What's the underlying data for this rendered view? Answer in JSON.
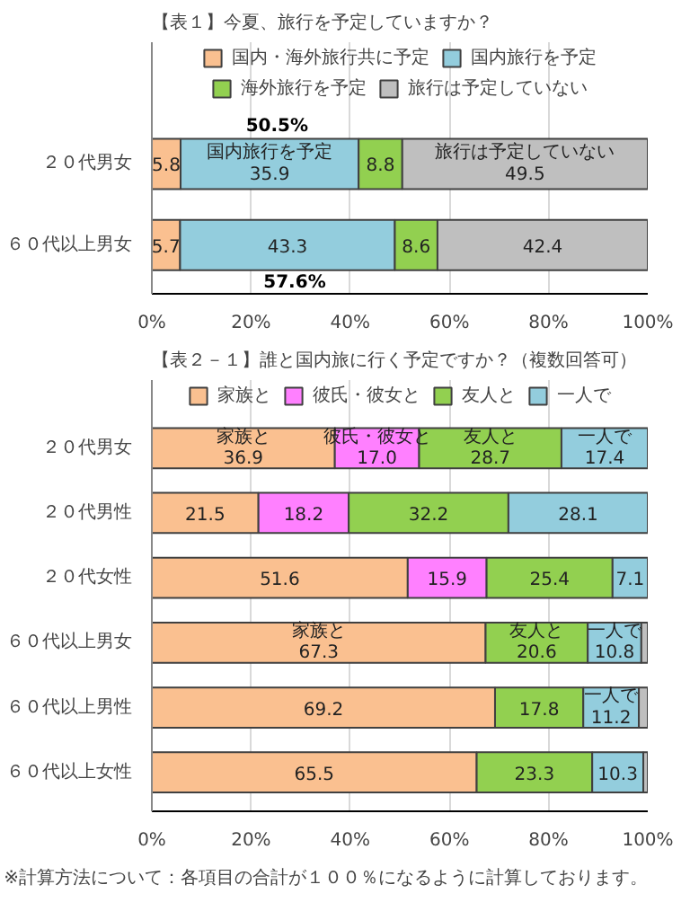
{
  "chart_data": [
    {
      "type": "bar",
      "orientation": "horizontal",
      "stacked": true,
      "title": "【表１】今夏、旅行を予定していますか？",
      "categories": [
        "２０代男女",
        "６０代以上男女"
      ],
      "series": [
        {
          "name": "国内・海外旅行共に予定",
          "color": "#fac090",
          "values": [
            5.8,
            5.7
          ],
          "value_labels": [
            "5.8",
            "5.7"
          ]
        },
        {
          "name": "国内旅行を予定",
          "color": "#93cddd",
          "values": [
            35.9,
            43.3
          ],
          "value_labels": [
            "国内旅行を予定\n35.9",
            "43.3"
          ]
        },
        {
          "name": "海外旅行を予定",
          "color": "#92d050",
          "values": [
            8.8,
            8.6
          ],
          "value_labels": [
            "8.8",
            "8.6"
          ]
        },
        {
          "name": "旅行は予定していない",
          "color": "#bfbfbf",
          "values": [
            49.5,
            42.4
          ],
          "value_labels": [
            "旅行は予定していない\n49.5",
            "42.4"
          ]
        }
      ],
      "annotations": [
        "50.5%",
        "57.6%"
      ],
      "xlim": [
        0,
        100
      ],
      "xticks": [
        {
          "value": 0,
          "label": "0%"
        },
        {
          "value": 20,
          "label": "20%"
        },
        {
          "value": 40,
          "label": "40%"
        },
        {
          "value": 60,
          "label": "60%"
        },
        {
          "value": 80,
          "label": "80%"
        },
        {
          "value": 100,
          "label": "100%"
        }
      ],
      "grid": "x",
      "legend": "top"
    },
    {
      "type": "bar",
      "orientation": "horizontal",
      "stacked": true,
      "title": "【表２－１】誰と国内旅に行く予定ですか？（複数回答可）",
      "categories": [
        "２０代男女",
        "２０代男性",
        "２０代女性",
        "６０代以上男女",
        "６０代以上男性",
        "６０代以上女性"
      ],
      "series": [
        {
          "name": "家族と",
          "color": "#fac090",
          "values": [
            36.9,
            21.5,
            51.6,
            67.3,
            69.2,
            65.5
          ],
          "value_labels": [
            "家族と\n36.9",
            "21.5",
            "51.6",
            "家族と\n67.3",
            "69.2",
            "65.5"
          ]
        },
        {
          "name": "彼氏・彼女と",
          "color": "#ff80ff",
          "values": [
            17.0,
            18.2,
            15.9,
            null,
            null,
            null
          ],
          "value_labels": [
            "彼氏・彼女と\n17.0",
            "18.2",
            "15.9",
            null,
            null,
            null
          ]
        },
        {
          "name": "友人と",
          "color": "#92d050",
          "values": [
            28.7,
            32.2,
            25.4,
            20.6,
            17.8,
            23.3
          ],
          "value_labels": [
            "友人と\n28.7",
            "32.2",
            "25.4",
            "友人と\n20.6",
            "17.8",
            "23.3"
          ]
        },
        {
          "name": "一人で",
          "color": "#93cddd",
          "values": [
            17.4,
            28.1,
            7.1,
            10.8,
            11.2,
            10.3
          ],
          "value_labels": [
            "一人で\n17.4",
            "28.1",
            "7.1",
            "一人で\n10.8",
            "一人で\n11.2",
            "10.3"
          ]
        },
        {
          "color": "#bfbfbf",
          "values": [
            null,
            null,
            null,
            1.3,
            1.8,
            0.9
          ]
        }
      ],
      "annotations": [
        "※計算方法について：各項目の合計が１００％になるように計算しております。"
      ],
      "xlim": [
        0,
        100
      ],
      "xticks": [
        {
          "value": 0,
          "label": "0%"
        },
        {
          "value": 20,
          "label": "20%"
        },
        {
          "value": 40,
          "label": "40%"
        },
        {
          "value": 60,
          "label": "60%"
        },
        {
          "value": 80,
          "label": "80%"
        },
        {
          "value": 100,
          "label": "100%"
        }
      ],
      "grid": "x",
      "legend": "top"
    }
  ]
}
